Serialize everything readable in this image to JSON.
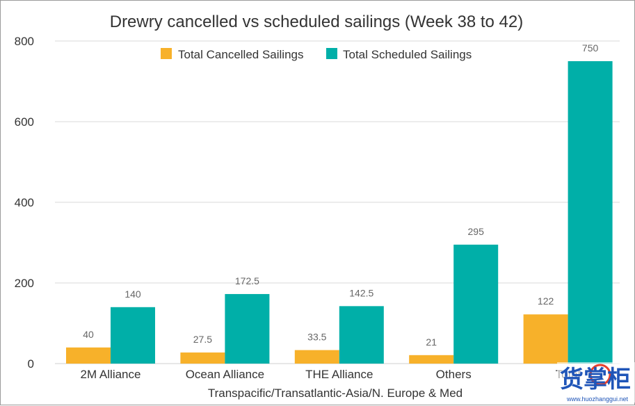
{
  "chart_data": {
    "type": "bar",
    "title": "Drewry cancelled vs scheduled sailings (Week 38 to 42)",
    "xlabel": "Transpacific/Transatlantic-Asia/N. Europe & Med",
    "ylabel": "",
    "categories": [
      "2M Alliance",
      "Ocean Alliance",
      "THE Alliance",
      "Others",
      "Total"
    ],
    "series": [
      {
        "name": "Total Cancelled Sailings",
        "color": "#F7B12A",
        "values": [
          40,
          27.5,
          33.5,
          21,
          122
        ],
        "labels": [
          "40",
          "27.5",
          "33.5",
          "21",
          "122"
        ]
      },
      {
        "name": "Total Scheduled Sailings",
        "color": "#00AFA8",
        "values": [
          140,
          172.5,
          142.5,
          295,
          750
        ],
        "labels": [
          "140",
          "172.5",
          "142.5",
          "295",
          "750"
        ]
      }
    ],
    "ylim": [
      0,
      800
    ],
    "yticks": [
      0,
      200,
      400,
      600,
      800
    ],
    "ytick_labels": [
      "0",
      "200",
      "400",
      "600",
      "800"
    ],
    "grid": true,
    "legend": "top"
  },
  "watermark": {
    "text": "货掌柜",
    "url": "www.huozhanggui.net",
    "color": "#1F55B8",
    "accent": "#E8412C"
  }
}
